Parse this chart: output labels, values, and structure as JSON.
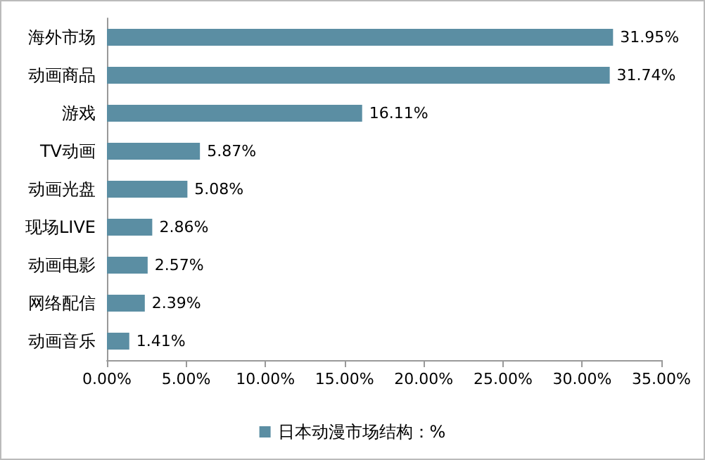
{
  "chart_data": {
    "type": "bar",
    "orientation": "horizontal",
    "categories": [
      "海外市场",
      "动画商品",
      "游戏",
      "TV动画",
      "动画光盘",
      "现场LIVE",
      "动画电影",
      "网络配信",
      "动画音乐"
    ],
    "series": [
      {
        "name": "日本动漫市场结构：%",
        "color": "#5b8ea3",
        "values": [
          31.95,
          31.74,
          16.11,
          5.87,
          5.08,
          2.86,
          2.57,
          2.39,
          1.41
        ],
        "value_labels": [
          "31.95%",
          "31.74%",
          "16.11%",
          "5.87%",
          "5.08%",
          "2.86%",
          "2.57%",
          "2.39%",
          "1.41%"
        ]
      }
    ],
    "xlim": [
      0,
      35
    ],
    "xticks": [
      {
        "value": 0,
        "label": "0.00%"
      },
      {
        "value": 5,
        "label": "5.00%"
      },
      {
        "value": 10,
        "label": "10.00%"
      },
      {
        "value": 15,
        "label": "15.00%"
      },
      {
        "value": 20,
        "label": "20.00%"
      },
      {
        "value": 25,
        "label": "25.00%"
      },
      {
        "value": 30,
        "label": "30.00%"
      },
      {
        "value": 35,
        "label": "35.00%"
      }
    ],
    "grid": false,
    "legend": "bottom"
  }
}
